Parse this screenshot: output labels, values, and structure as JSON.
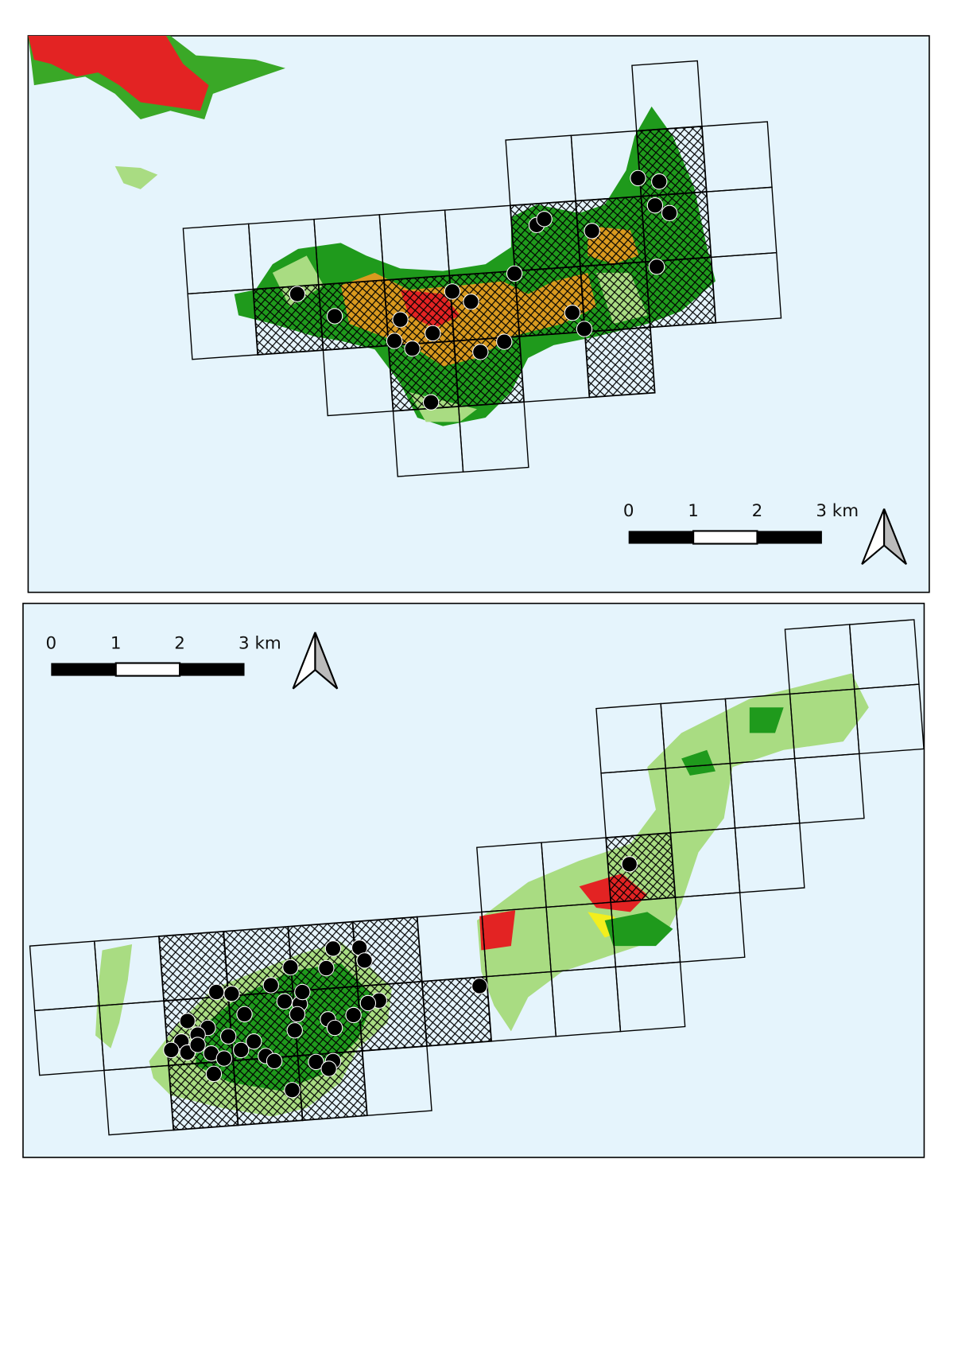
{
  "maps": [
    {
      "scale_labels": [
        "0",
        "1",
        "2",
        "3 km"
      ]
    },
    {
      "scale_labels": [
        "0",
        "1",
        "2",
        "3 km"
      ]
    }
  ]
}
